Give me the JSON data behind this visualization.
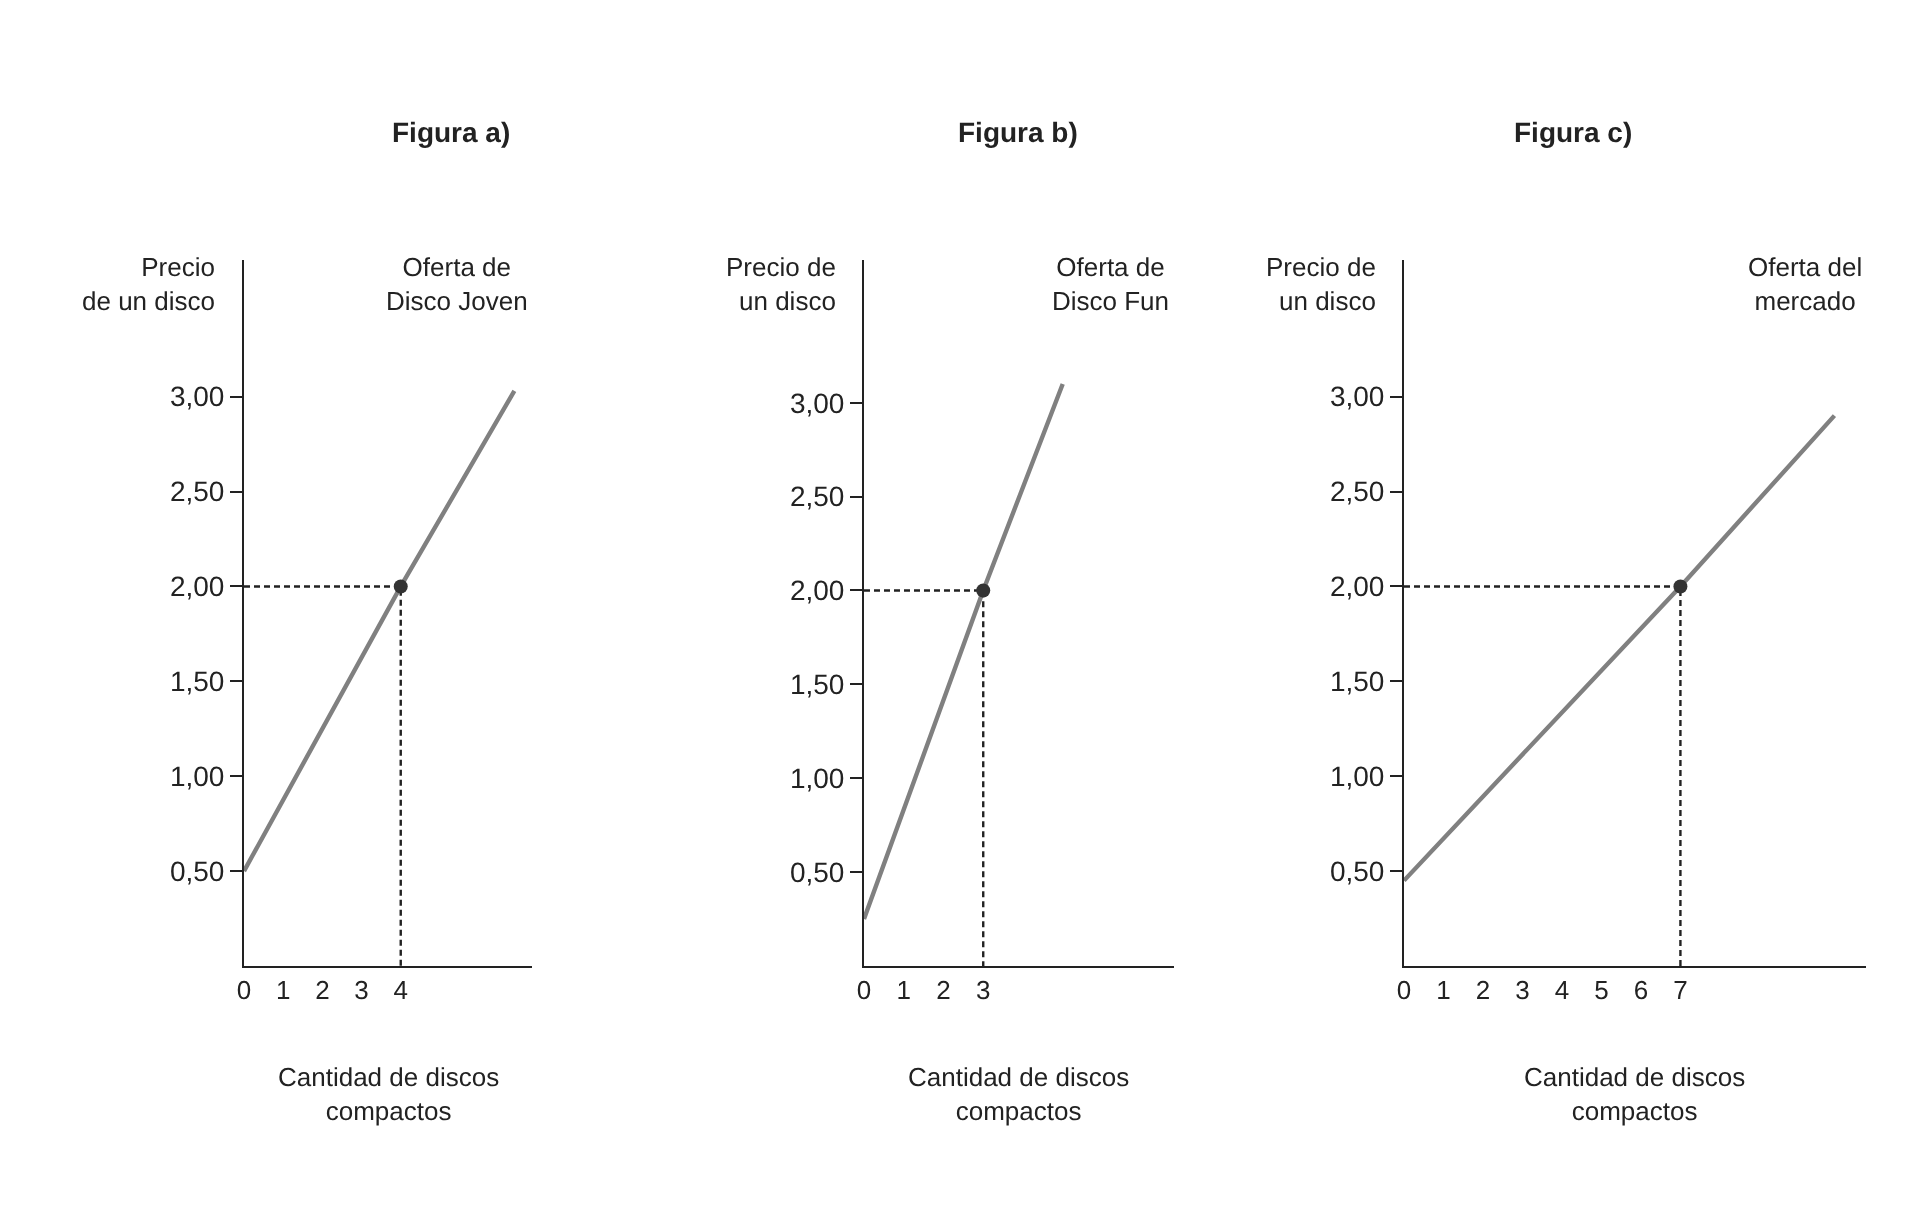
{
  "chart_data": [
    {
      "type": "line",
      "title": "Figura a)",
      "ylabel": "Precio\nde un disco",
      "xlabel": "Cantidad de discos\ncompactos",
      "xlim": [
        0,
        7.35
      ],
      "ylim": [
        0,
        3.72
      ],
      "xticks": [
        0,
        1,
        2,
        3,
        4
      ],
      "yticks": [
        {
          "value": 0.5,
          "label": "0,50"
        },
        {
          "value": 1,
          "label": "1,00"
        },
        {
          "value": 1.5,
          "label": "1,50"
        },
        {
          "value": 2,
          "label": "2,00"
        },
        {
          "value": 2.5,
          "label": "2,50"
        },
        {
          "value": 3,
          "label": "3,00"
        }
      ],
      "series": [
        {
          "name": "Oferta de\nDisco Joven",
          "color": "#808080",
          "x": [
            0,
            4,
            6.9
          ],
          "values": [
            0.5,
            2,
            3.03
          ]
        },
        {
          "type": "line",
          "line_style": "dashed",
          "color": "#222222",
          "x": [
            0,
            4,
            4
          ],
          "values": [
            2,
            2,
            0
          ]
        },
        {
          "type": "scatter",
          "marker": "circle",
          "color": "#333333",
          "x": [
            4
          ],
          "values": [
            2
          ]
        }
      ]
    },
    {
      "type": "line",
      "title": "Figura b)",
      "ylabel": "Precio de\nun disco",
      "xlabel": "Cantidad de discos\ncompactos",
      "xlim": [
        0,
        7.8
      ],
      "ylim": [
        0,
        3.76
      ],
      "xticks": [
        0,
        1,
        2,
        3
      ],
      "yticks": [
        {
          "value": 0.5,
          "label": "0,50"
        },
        {
          "value": 1,
          "label": "1,00"
        },
        {
          "value": 1.5,
          "label": "1,50"
        },
        {
          "value": 2,
          "label": "2,00"
        },
        {
          "value": 2.5,
          "label": "2,50"
        },
        {
          "value": 3,
          "label": "3,00"
        }
      ],
      "series": [
        {
          "name": "Oferta de\nDisco Fun",
          "color": "#808080",
          "x": [
            0,
            3,
            5
          ],
          "values": [
            0.25,
            2,
            3.1
          ]
        },
        {
          "type": "line",
          "line_style": "dashed",
          "color": "#222222",
          "x": [
            0,
            3,
            3
          ],
          "values": [
            2,
            2,
            0
          ]
        },
        {
          "type": "scatter",
          "marker": "circle",
          "color": "#333333",
          "x": [
            3
          ],
          "values": [
            2
          ]
        }
      ]
    },
    {
      "type": "line",
      "title": "Figura c)",
      "ylabel": "Precio de\nun disco",
      "xlabel": "Cantidad de discos\ncompactos",
      "xlim": [
        0,
        11.7
      ],
      "ylim": [
        0,
        3.72
      ],
      "xticks": [
        0,
        1,
        2,
        3,
        4,
        5,
        6,
        7
      ],
      "yticks": [
        {
          "value": 0.5,
          "label": "0,50"
        },
        {
          "value": 1,
          "label": "1,00"
        },
        {
          "value": 1.5,
          "label": "1,50"
        },
        {
          "value": 2,
          "label": "2,00"
        },
        {
          "value": 2.5,
          "label": "2,50"
        },
        {
          "value": 3,
          "label": "3,00"
        }
      ],
      "series": [
        {
          "name": "Oferta del\nmercado",
          "color": "#808080",
          "x": [
            0,
            7,
            10.9
          ],
          "values": [
            0.45,
            2,
            2.9
          ]
        },
        {
          "type": "line",
          "line_style": "dashed",
          "color": "#222222",
          "x": [
            0,
            7,
            7
          ],
          "values": [
            2,
            2,
            0
          ]
        },
        {
          "type": "scatter",
          "marker": "circle",
          "color": "#333333",
          "x": [
            7
          ],
          "values": [
            2
          ]
        }
      ]
    }
  ]
}
